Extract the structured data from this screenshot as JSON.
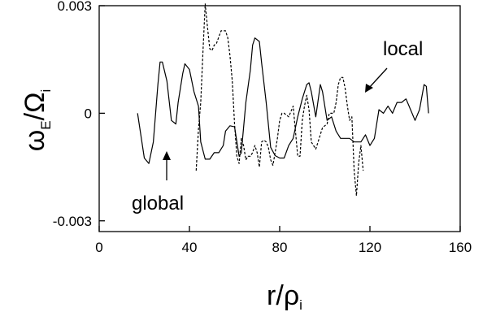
{
  "chart_data": {
    "type": "line",
    "xlabel": {
      "main": "r/ρ",
      "sub": "i"
    },
    "ylabel": {
      "main": "ω",
      "sub1": "E",
      "mid": "/Ω",
      "sub2": "i"
    },
    "xlim": [
      0,
      160
    ],
    "ylim": [
      -0.0033,
      0.003
    ],
    "xticks": [
      {
        "value": 0,
        "label": "0"
      },
      {
        "value": 40,
        "label": "40"
      },
      {
        "value": 80,
        "label": "80"
      },
      {
        "value": 120,
        "label": "120"
      },
      {
        "value": 160,
        "label": "160"
      }
    ],
    "yticks": [
      {
        "value": 0.003,
        "label": "0.003"
      },
      {
        "value": 0,
        "label": "0"
      },
      {
        "value": -0.003,
        "label": "-0.003"
      }
    ],
    "grid": false,
    "legend": "none",
    "series": [
      {
        "style": "solid",
        "color": "#000000",
        "points": [
          [
            17,
            0.0
          ],
          [
            20,
            -0.00125
          ],
          [
            22,
            -0.0014
          ],
          [
            24,
            -0.0008
          ],
          [
            26,
            0.0008
          ],
          [
            27,
            0.00143
          ],
          [
            28,
            0.00143
          ],
          [
            30,
            0.0009
          ],
          [
            32,
            -0.0002
          ],
          [
            34,
            -0.0003
          ],
          [
            35,
            0.0003
          ],
          [
            37,
            0.0011
          ],
          [
            38,
            0.00138
          ],
          [
            40,
            0.00122
          ],
          [
            42,
            0.0006
          ],
          [
            44,
            0.0002
          ],
          [
            45,
            -0.0008
          ],
          [
            47,
            -0.00128
          ],
          [
            49,
            -0.00128
          ],
          [
            51,
            -0.0011
          ],
          [
            53,
            -0.0011
          ],
          [
            55,
            -0.0009
          ],
          [
            56,
            -0.0005
          ],
          [
            58,
            -0.00035
          ],
          [
            60,
            -0.00038
          ],
          [
            62,
            -0.0012
          ],
          [
            63,
            -0.0011
          ],
          [
            65,
            0.0003
          ],
          [
            67,
            0.0012
          ],
          [
            68,
            0.0019
          ],
          [
            69,
            0.0021
          ],
          [
            71,
            0.002
          ],
          [
            72,
            0.0014
          ],
          [
            74,
            0.0003
          ],
          [
            76,
            -0.00095
          ],
          [
            78,
            -0.00118
          ],
          [
            80,
            -0.00125
          ],
          [
            82,
            -0.00125
          ],
          [
            84,
            -0.0009
          ],
          [
            86,
            -0.0007
          ],
          [
            88,
            -0.0001
          ],
          [
            90,
            0.0004
          ],
          [
            92,
            0.0008
          ],
          [
            93,
            0.00085
          ],
          [
            94,
            0.0006
          ],
          [
            96,
            -0.0001
          ],
          [
            98,
            0.0008
          ],
          [
            99,
            0.0006
          ],
          [
            101,
            -0.0002
          ],
          [
            103,
            -0.0001
          ],
          [
            105,
            -0.0005
          ],
          [
            107,
            -0.0007
          ],
          [
            109,
            -0.0007
          ],
          [
            111,
            -0.0007
          ],
          [
            113,
            -0.0008
          ],
          [
            116,
            -0.0008
          ],
          [
            118,
            -0.0006
          ],
          [
            120,
            -0.0009
          ],
          [
            122,
            -0.0007
          ],
          [
            124,
            0.0001
          ],
          [
            126,
            0.0
          ],
          [
            128,
            0.0002
          ],
          [
            130,
            0.0
          ],
          [
            132,
            0.0003
          ],
          [
            134,
            0.0003
          ],
          [
            136,
            0.0004
          ],
          [
            138,
            0.0001
          ],
          [
            140,
            -0.0002
          ],
          [
            142,
            0.0001
          ],
          [
            144,
            0.0008
          ],
          [
            145,
            0.00075
          ],
          [
            146,
            0.0
          ]
        ]
      },
      {
        "style": "dashed",
        "color": "#000000",
        "points": [
          [
            43,
            -0.0016
          ],
          [
            44,
            -0.00045
          ],
          [
            45,
            0.0003
          ],
          [
            46,
            0.0017
          ],
          [
            47,
            0.00305
          ],
          [
            48,
            0.0024
          ],
          [
            49,
            0.0018
          ],
          [
            50,
            0.00175
          ],
          [
            51,
            0.0019
          ],
          [
            52,
            0.00195
          ],
          [
            54,
            0.0023
          ],
          [
            56,
            0.0023
          ],
          [
            57,
            0.0021
          ],
          [
            58,
            0.0016
          ],
          [
            59,
            0.0009
          ],
          [
            60,
            -0.0003
          ],
          [
            61,
            -0.0012
          ],
          [
            62,
            -0.0014
          ],
          [
            63,
            -0.0007
          ],
          [
            64,
            -0.0009
          ],
          [
            65,
            -0.0013
          ],
          [
            66,
            -0.0012
          ],
          [
            67,
            -0.0012
          ],
          [
            68,
            -0.0011
          ],
          [
            69,
            -0.0009
          ],
          [
            70,
            -0.0011
          ],
          [
            71,
            -0.0015
          ],
          [
            72,
            -0.0008
          ],
          [
            73,
            -0.00075
          ],
          [
            74,
            -0.0008
          ],
          [
            75,
            -0.00095
          ],
          [
            76,
            -0.0013
          ],
          [
            77,
            -0.00145
          ],
          [
            78,
            -0.0011
          ],
          [
            79,
            -0.0007
          ],
          [
            80,
            -0.0002
          ],
          [
            81,
            0.0
          ],
          [
            82,
            0.0
          ],
          [
            84,
            -0.0001
          ],
          [
            86,
            0.0002
          ],
          [
            87,
            -0.0005
          ],
          [
            88,
            -0.0012
          ],
          [
            89,
            -0.0012
          ],
          [
            90,
            -0.0002
          ],
          [
            91,
            0.0002
          ],
          [
            92,
            0.0005
          ],
          [
            93,
            0.0001
          ],
          [
            94,
            -0.0008
          ],
          [
            96,
            -0.001
          ],
          [
            97,
            -0.0008
          ],
          [
            99,
            -0.0004
          ],
          [
            101,
            -0.0003
          ],
          [
            102,
            0.0
          ],
          [
            104,
            0.0
          ],
          [
            105,
            0.0003
          ],
          [
            106,
            0.0008
          ],
          [
            107,
            0.001
          ],
          [
            108,
            0.001
          ],
          [
            109,
            0.0007
          ],
          [
            110,
            0.0002
          ],
          [
            111,
            -0.0002
          ],
          [
            112,
            -0.0001
          ],
          [
            113,
            -0.0016
          ],
          [
            114,
            -0.0023
          ],
          [
            115,
            -0.0014
          ],
          [
            116,
            -0.0009
          ],
          [
            117,
            -0.0016
          ]
        ]
      }
    ],
    "annotations": [
      {
        "text": "local",
        "x": 133,
        "y": 0.0021
      },
      {
        "text": "global",
        "x": 28,
        "y": -0.0024
      }
    ]
  }
}
